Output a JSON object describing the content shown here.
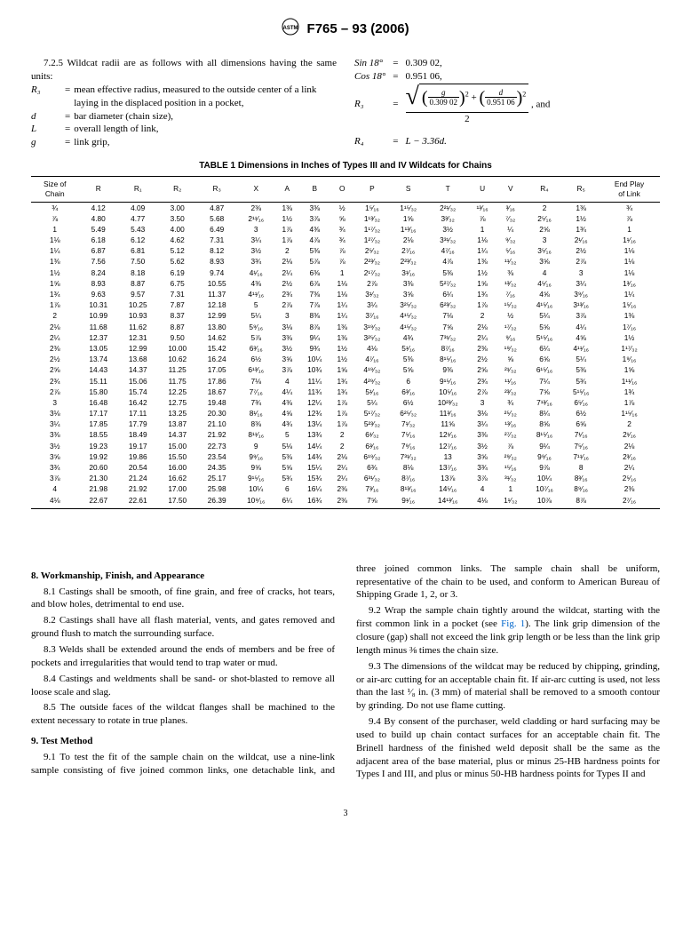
{
  "header": {
    "standard": "F765 – 93 (2006)"
  },
  "top_left": {
    "lead": "7.2.5 Wildcat radii are as follows with all dimensions having the same units:",
    "defs": [
      {
        "sym": "R₃",
        "txt": "mean effective radius, measured to the outside center of a link laying in the displaced position in a pocket,"
      },
      {
        "sym": "d",
        "txt": "bar diameter (chain size),"
      },
      {
        "sym": "L",
        "txt": "overall length of link,"
      },
      {
        "sym": "g",
        "txt": "link grip,"
      }
    ]
  },
  "top_right": {
    "sin_label": "Sin 18°",
    "sin_val": "0.309 02,",
    "cos_label": "Cos 18°",
    "cos_val": "0.951 06,",
    "r3_label": "R₃",
    "frac_a_num": "g",
    "frac_a_den": "0.309 02",
    "frac_b_num": "d",
    "frac_b_den": "0.951 06",
    "denom": "2",
    "tail": ", and",
    "r4_label": "R₄",
    "r4_val": "L − 3.36d."
  },
  "table": {
    "caption": "TABLE 1 Dimensions in Inches of Types III and IV Wildcats for Chains",
    "headers": [
      "Size of\nChain",
      "R",
      "R₁",
      "R₂",
      "R₃",
      "X",
      "A",
      "B",
      "O",
      "P",
      "S",
      "T",
      "U",
      "V",
      "R₄",
      "R₅",
      "End Play\nof Link"
    ],
    "rows": [
      [
        "¾",
        "4.12",
        "4.09",
        "3.00",
        "4.87",
        "2⅜",
        "1⅜",
        "3⅜",
        "½",
        "1⁵⁄₁₆",
        "1¹⁵⁄₃₂",
        "2²¹⁄₃₂",
        "¹³⁄₁₆",
        "³⁄₁₆",
        "2",
        "1⅜",
        "¾"
      ],
      [
        "⅞",
        "4.80",
        "4.77",
        "3.50",
        "5.68",
        "2¹¹⁄₁₆",
        "1½",
        "3⅞",
        "⅝",
        "1¹³⁄₃₂",
        "1⅝",
        "3³⁄₃₂",
        "⅞",
        "⁷⁄₃₂",
        "2⁵⁄₁₆",
        "1½",
        "⅞"
      ],
      [
        "1",
        "5.49",
        "5.43",
        "4.00",
        "6.49",
        "3",
        "1⅞",
        "4⅜",
        "¾",
        "1¹⁷⁄₃₂",
        "1¹³⁄₁₆",
        "3½",
        "1",
        "¼",
        "2⅝",
        "1¾",
        "1"
      ],
      [
        "1⅛",
        "6.18",
        "6.12",
        "4.62",
        "7.31",
        "3¼",
        "1⅞",
        "4⅞",
        "¾",
        "1²⁷⁄₃₂",
        "2⅛",
        "3³¹⁄₃₂",
        "1⅛",
        "⁹⁄₃₂",
        "3",
        "2¹⁄₁₆",
        "1¹⁄₁₆"
      ],
      [
        "1¼",
        "6.87",
        "6.81",
        "5.12",
        "8.12",
        "3½",
        "2",
        "5⅜",
        "⅞",
        "2⁵⁄₃₂",
        "2⁷⁄₁₆",
        "4⁷⁄₁₆",
        "1¼",
        "⁵⁄₁₆",
        "3⁵⁄₁₆",
        "2½",
        "1⅛"
      ],
      [
        "1⅜",
        "7.56",
        "7.50",
        "5.62",
        "8.93",
        "3¾",
        "2⅛",
        "5⅞",
        "⅞",
        "2²³⁄₃₂",
        "2²³⁄₃₂",
        "4⅞",
        "1⅜",
        "¹¹⁄₃₂",
        "3⅝",
        "2⅞",
        "1⅛"
      ],
      [
        "1½",
        "8.24",
        "8.18",
        "6.19",
        "9.74",
        "4¹⁄₁₆",
        "2¼",
        "6⅜",
        "1",
        "2¹⁷⁄₃₂",
        "3¹⁄₁₆",
        "5⅜",
        "1½",
        "⅜",
        "4",
        "3",
        "1⅛"
      ],
      [
        "1⅝",
        "8.93",
        "8.87",
        "6.75",
        "10.55",
        "4⅜",
        "2½",
        "6⅞",
        "1⅛",
        "2⅞",
        "3⅜",
        "5²⁷⁄₃₂",
        "1⅝",
        "¹³⁄₃₂",
        "4⁵⁄₁₆",
        "3¼",
        "1³⁄₁₆"
      ],
      [
        "1¾",
        "9.63",
        "9.57",
        "7.31",
        "11.37",
        "4¹¹⁄₁₆",
        "2¾",
        "7⅜",
        "1⅛",
        "3¹⁄₃₂",
        "3⅝",
        "6¼",
        "1¾",
        "⁷⁄₁₆",
        "4⅝",
        "3⁹⁄₁₆",
        "1¼"
      ],
      [
        "1⅞",
        "10.31",
        "10.25",
        "7.87",
        "12.18",
        "5",
        "2⅞",
        "7⅞",
        "1¼",
        "3¼",
        "3²⁵⁄₃₂",
        "6²³⁄₃₂",
        "1⅞",
        "¹⁵⁄₃₂",
        "4¹⁵⁄₁₆",
        "3¹³⁄₁₆",
        "1⁵⁄₁₆"
      ],
      [
        "2",
        "10.99",
        "10.93",
        "8.37",
        "12.99",
        "5¼",
        "3",
        "8⅜",
        "1¼",
        "3⁷⁄₁₆",
        "4¹⁵⁄₃₂",
        "7⅛",
        "2",
        "½",
        "5¼",
        "3⅞",
        "1⅜"
      ],
      [
        "2⅛",
        "11.68",
        "11.62",
        "8.87",
        "13.80",
        "5⁹⁄₁₆",
        "3⅛",
        "8⅞",
        "1⅜",
        "3¹⁹⁄₃₂",
        "4¹⁵⁄₃₂",
        "7⅝",
        "2⅛",
        "¹⁷⁄₃₂",
        "5⅝",
        "4¼",
        "1⁷⁄₁₆"
      ],
      [
        "2¼",
        "12.37",
        "12.31",
        "9.50",
        "14.62",
        "5⅞",
        "3⅜",
        "9¼",
        "1⅜",
        "3²⁵⁄₃₂",
        "4¾",
        "7³¹⁄₃₂",
        "2¼",
        "⁹⁄₁₆",
        "5¹⁵⁄₁₆",
        "4⅝",
        "1½"
      ],
      [
        "2⅜",
        "13.05",
        "12.99",
        "10.00",
        "15.42",
        "6³⁄₁₆",
        "3½",
        "9¾",
        "1½",
        "4⅛",
        "5¹⁄₁₆",
        "8⁷⁄₁₆",
        "2⅜",
        "¹⁹⁄₃₂",
        "6¼",
        "4¹¹⁄₁₆",
        "1¹⁷⁄₃₂"
      ],
      [
        "2½",
        "13.74",
        "13.68",
        "10.62",
        "16.24",
        "6½",
        "3⅝",
        "10¼",
        "1½",
        "4⁷⁄₁₆",
        "5⅜",
        "8¹⁵⁄₁₆",
        "2½",
        "⅝",
        "6⅝",
        "5¼",
        "1⁹⁄₁₆"
      ],
      [
        "2⅝",
        "14.43",
        "14.37",
        "11.25",
        "17.05",
        "6¹³⁄₁₆",
        "3⅞",
        "10¾",
        "1⅝",
        "4¹⁹⁄₃₂",
        "5⅝",
        "9⅜",
        "2⅝",
        "²¹⁄₃₂",
        "6¹⁵⁄₁₆",
        "5⅜",
        "1⅝"
      ],
      [
        "2¾",
        "15.11",
        "15.06",
        "11.75",
        "17.86",
        "7⅛",
        "4",
        "11¼",
        "1¾",
        "4²⁹⁄₃₂",
        "6",
        "9¹⁵⁄₁₆",
        "2¾",
        "¹¹⁄₁₆",
        "7¼",
        "5¾",
        "1¹¹⁄₁₆"
      ],
      [
        "2⅞",
        "15.80",
        "15.74",
        "12.25",
        "18.67",
        "7⁷⁄₁₆",
        "4¼",
        "11¾",
        "1¾",
        "5¹⁄₁₆",
        "6³⁄₁₆",
        "10⁵⁄₁₆",
        "2⅞",
        "²³⁄₃₂",
        "7⅝",
        "5¹⁵⁄₁₆",
        "1¾"
      ],
      [
        "3",
        "16.48",
        "16.42",
        "12.75",
        "19.48",
        "7¾",
        "4⅜",
        "12¼",
        "1⅞",
        "5¼",
        "6½",
        "10²³⁄₃₂",
        "3",
        "¾",
        "7¹³⁄₁₆",
        "6⁵⁄₁₆",
        "1⅞"
      ],
      [
        "3⅛",
        "17.17",
        "17.11",
        "13.25",
        "20.30",
        "8¹⁄₁₆",
        "4⅝",
        "12¾",
        "1⅞",
        "5¹⁷⁄₃₂",
        "6²⁵⁄₃₂",
        "11³⁄₁₆",
        "3⅛",
        "²⁵⁄₃₂",
        "8¼",
        "6½",
        "1¹⁵⁄₁₆"
      ],
      [
        "3¼",
        "17.85",
        "17.79",
        "13.87",
        "21.10",
        "8⅜",
        "4¾",
        "13¼",
        "1⅞",
        "5²³⁄₃₂",
        "7¹⁄₃₂",
        "11⅝",
        "3¼",
        "¹³⁄₁₆",
        "8⅝",
        "6⅝",
        "2"
      ],
      [
        "3⅜",
        "18.55",
        "18.49",
        "14.37",
        "21.92",
        "8¹¹⁄₁₆",
        "5",
        "13¾",
        "2",
        "6¹⁄₃₂",
        "7⁵⁄₁₆",
        "12¹⁄₁₆",
        "3⅜",
        "²⁷⁄₃₂",
        "8¹⁵⁄₁₆",
        "7¹⁄₁₆",
        "2¹⁄₁₆"
      ],
      [
        "3½",
        "19.23",
        "19.17",
        "15.00",
        "22.73",
        "9",
        "5⅛",
        "14¼",
        "2",
        "6³⁄₁₆",
        "7⁹⁄₁₆",
        "12⁷⁄₁₆",
        "3½",
        "⅞",
        "9¼",
        "7⁵⁄₁₆",
        "2⅛"
      ],
      [
        "3⅝",
        "19.92",
        "19.86",
        "15.50",
        "23.54",
        "9⁹⁄₁₆",
        "5⅜",
        "14¾",
        "2⅛",
        "6¹⁹⁄₃₂",
        "7³¹⁄₃₂",
        "13",
        "3⅝",
        "²⁹⁄₃₂",
        "9⁹⁄₁₆",
        "7¹¹⁄₁₆",
        "2³⁄₁₆"
      ],
      [
        "3¾",
        "20.60",
        "20.54",
        "16.00",
        "24.35",
        "9⅝",
        "5⅝",
        "15¼",
        "2¼",
        "6¾",
        "8⅛",
        "13⁷⁄₁₆",
        "3¾",
        "¹⁵⁄₁₆",
        "9⅞",
        "8",
        "2¼"
      ],
      [
        "3⅞",
        "21.30",
        "21.24",
        "16.62",
        "25.17",
        "9¹⁵⁄₁₆",
        "5¾",
        "15¾",
        "2¼",
        "6³¹⁄₃₂",
        "8⁷⁄₁₆",
        "13⅞",
        "3⅞",
        "³¹⁄₃₂",
        "10¼",
        "8³⁄₁₆",
        "2⁵⁄₁₆"
      ],
      [
        "4",
        "21.98",
        "21.92",
        "17.00",
        "25.98",
        "10¼",
        "6",
        "16¼",
        "2⅜",
        "7³⁄₁₆",
        "8¹³⁄₁₆",
        "14⁵⁄₁₆",
        "4",
        "1",
        "10⁷⁄₁₆",
        "8⁹⁄₁₆",
        "2⅜"
      ],
      [
        "4⅛",
        "22.67",
        "22.61",
        "17.50",
        "26.39",
        "10⁹⁄₁₆",
        "6¼",
        "16¾",
        "2⅜",
        "7⅝",
        "9¹⁄₁₆",
        "14¹³⁄₁₆",
        "4⅛",
        "1¹⁄₃₂",
        "10⅞",
        "8⅞",
        "2⁷⁄₁₆"
      ]
    ]
  },
  "sections": {
    "s8_title": "8. Workmanship, Finish, and Appearance",
    "s8_1": "8.1 Castings shall be smooth, of fine grain, and free of cracks, hot tears, and blow holes, detrimental to end use.",
    "s8_2": "8.2 Castings shall have all flash material, vents, and gates removed and ground flush to match the surrounding surface.",
    "s8_3": "8.3 Welds shall be extended around the ends of members and be free of pockets and irregularities that would tend to trap water or mud.",
    "s8_4": "8.4 Castings and weldments shall be sand- or shot-blasted to remove all loose scale and slag.",
    "s8_5": "8.5 The outside faces of the wildcat flanges shall be machined to the extent necessary to rotate in true planes.",
    "s9_title": "9. Test Method",
    "s9_1": "9.1 To test the fit of the sample chain on the wildcat, use a nine-link sample consisting of five joined common links, one detachable link, and three joined common links. The sample chain shall be uniform, representative of the chain to be used, and conform to American Bureau of Shipping Grade 1, 2, or 3.",
    "s9_2a": "9.2 Wrap the sample chain tightly around the wildcat, starting with the first common link in a pocket (see ",
    "s9_2link": "Fig. 1",
    "s9_2b": "). The link grip dimension of the closure (gap) shall not exceed the link grip length or be less than the link grip length minus ⅜ times the chain size.",
    "s9_3": "9.3 The dimensions of the wildcat may be reduced by chipping, grinding, or air-arc cutting for an acceptable chain fit. If air-arc cutting is used, not less than the last ¹⁄₈ in. (3 mm) of material shall be removed to a smooth contour by grinding. Do not use flame cutting.",
    "s9_4": "9.4 By consent of the purchaser, weld cladding or hard surfacing may be used to build up chain contact surfaces for an acceptable chain fit. The Brinell hardness of the finished weld deposit shall be the same as the adjacent area of the base material, plus or minus 25-HB hardness points for Types I and III, and plus or minus 50-HB hardness points for Types II and"
  },
  "pagenum": "3"
}
